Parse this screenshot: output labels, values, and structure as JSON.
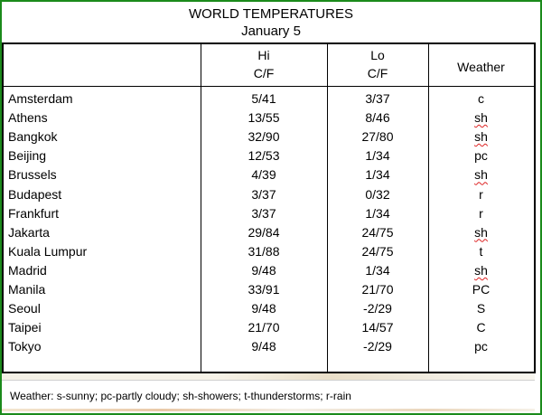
{
  "title": "WORLD TEMPERATURES",
  "date": "January 5",
  "headers": {
    "hi_line1": "Hi",
    "hi_line2": "C/F",
    "lo_line1": "Lo",
    "lo_line2": "C/F",
    "weather": "Weather"
  },
  "rows": [
    {
      "city": "Amsterdam",
      "hi": "5/41",
      "lo": "3/37",
      "weather": "c"
    },
    {
      "city": "Athens",
      "hi": "13/55",
      "lo": "8/46",
      "weather": "sh"
    },
    {
      "city": "Bangkok",
      "hi": "32/90",
      "lo": "27/80",
      "weather": "sh"
    },
    {
      "city": "Beijing",
      "hi": "12/53",
      "lo": "1/34",
      "weather": "pc"
    },
    {
      "city": "Brussels",
      "hi": "4/39",
      "lo": "1/34",
      "weather": "sh"
    },
    {
      "city": "Budapest",
      "hi": "3/37",
      "lo": "0/32",
      "weather": "r"
    },
    {
      "city": "Frankfurt",
      "hi": "3/37",
      "lo": "1/34",
      "weather": "r"
    },
    {
      "city": "Jakarta",
      "hi": "29/84",
      "lo": "24/75",
      "weather": "sh"
    },
    {
      "city": "Kuala Lumpur",
      "hi": "31/88",
      "lo": "24/75",
      "weather": "t"
    },
    {
      "city": "Madrid",
      "hi": "9/48",
      "lo": "1/34",
      "weather": "sh"
    },
    {
      "city": "Manila",
      "hi": "33/91",
      "lo": "21/70",
      "weather": "PC"
    },
    {
      "city": "Seoul",
      "hi": "9/48",
      "lo": "-2/29",
      "weather": "S"
    },
    {
      "city": "Taipei",
      "hi": "21/70",
      "lo": "14/57",
      "weather": "C"
    },
    {
      "city": "Tokyo",
      "hi": "9/48",
      "lo": "-2/29",
      "weather": "pc"
    }
  ],
  "legend": "Weather: s-sunny; pc-partly cloudy; sh-showers; t-thunderstorms; r-rain",
  "colors": {
    "frame": "#1b8a1b",
    "spellcheck": "#d22"
  }
}
